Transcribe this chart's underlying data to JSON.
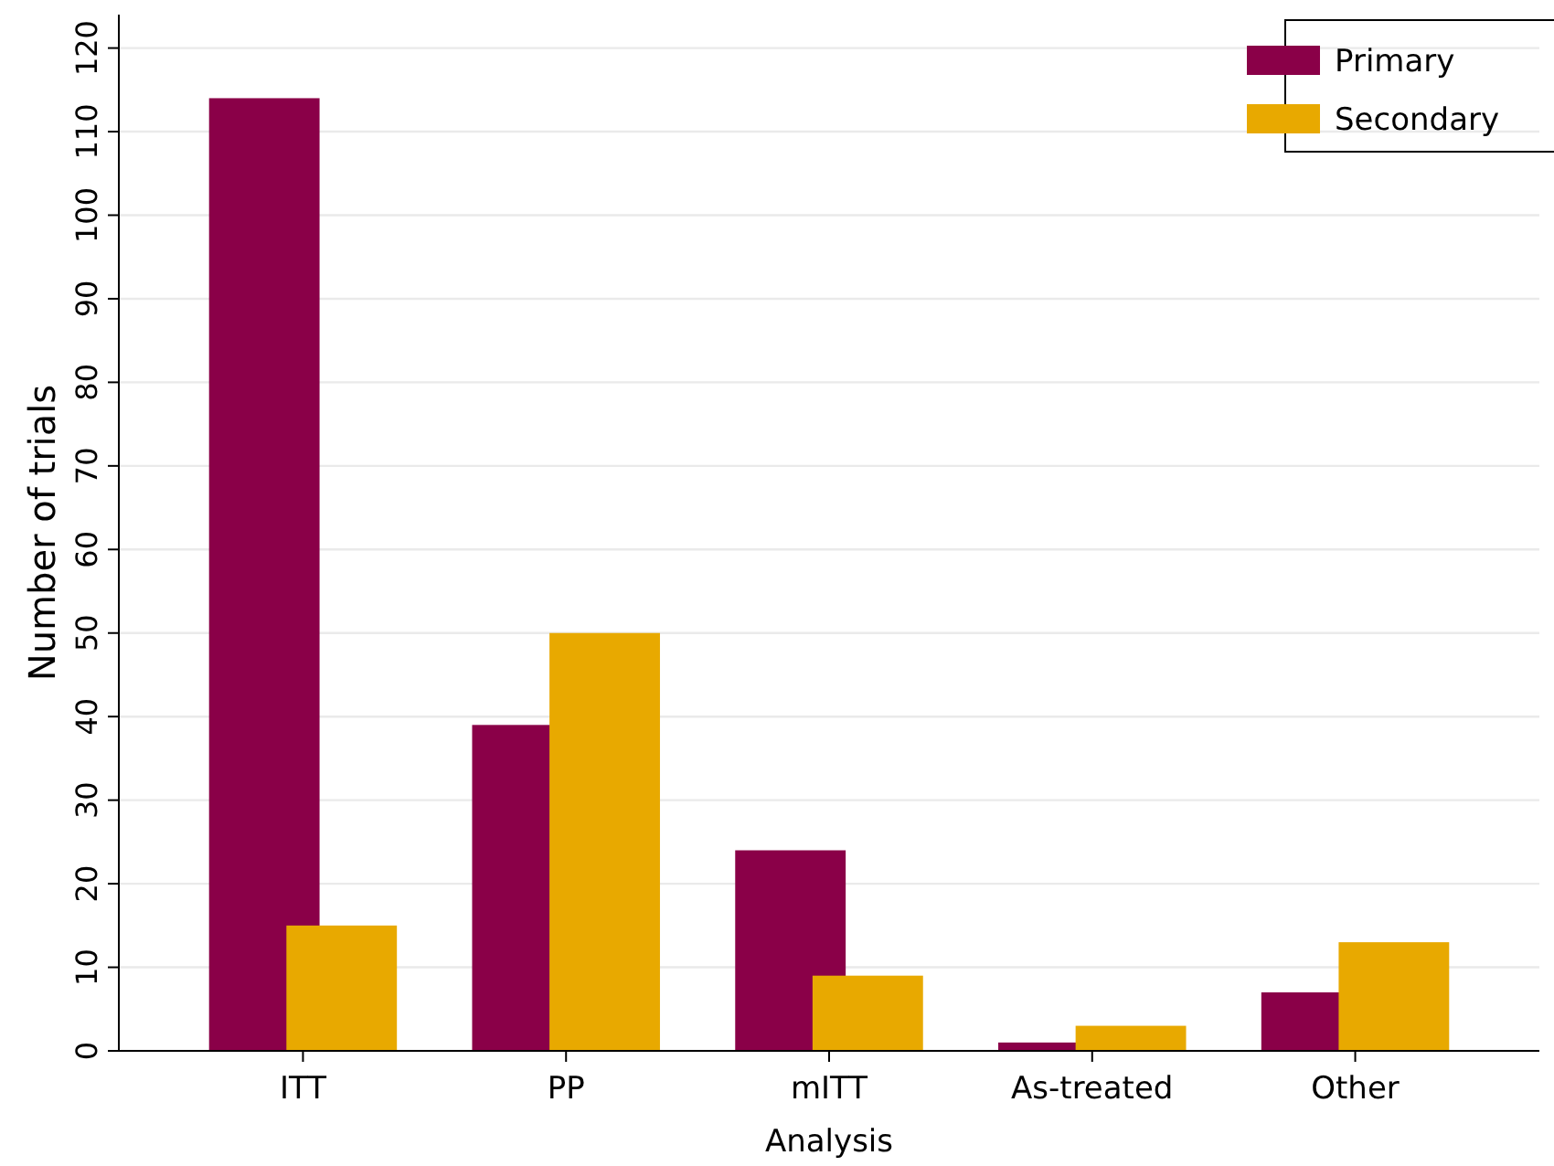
{
  "chart_data": {
    "type": "bar",
    "xlabel": "Analysis",
    "ylabel": "Number of trials",
    "categories": [
      "ITT",
      "PP",
      "mITT",
      "As-treated",
      "Other"
    ],
    "series": [
      {
        "name": "Primary",
        "color": "#8a0048",
        "values": [
          114,
          39,
          24,
          1,
          7
        ]
      },
      {
        "name": "Secondary",
        "color": "#e8a900",
        "values": [
          15,
          50,
          9,
          3,
          13
        ]
      }
    ],
    "ylim": [
      0,
      124
    ],
    "yticks": [
      0,
      10,
      20,
      30,
      40,
      50,
      60,
      70,
      80,
      90,
      100,
      110,
      120
    ],
    "grid": "y",
    "legend": "top right"
  }
}
